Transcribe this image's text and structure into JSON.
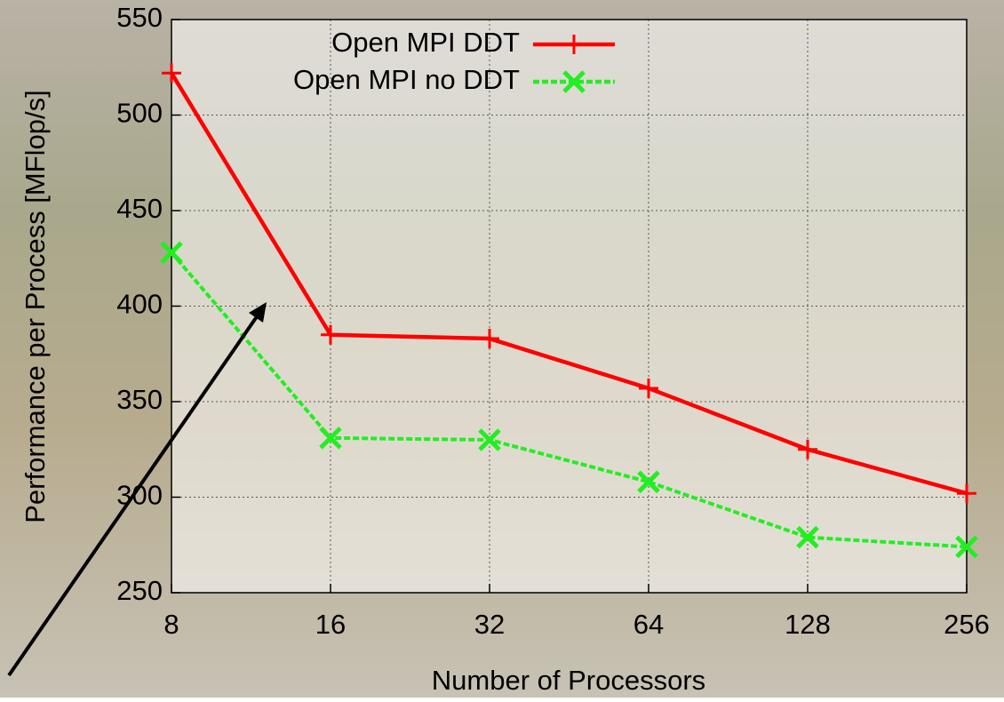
{
  "chart_data": {
    "type": "line",
    "x_label": "Number of Processors",
    "y_label": "Performance per Process [MFlop/s]",
    "x": [
      8,
      16,
      32,
      64,
      128,
      256
    ],
    "xlim": [
      8,
      256
    ],
    "xticks": [
      8,
      16,
      32,
      64,
      128,
      256
    ],
    "xlog": true,
    "ylim": [
      250,
      550
    ],
    "yticks": [
      250,
      300,
      350,
      400,
      450,
      500,
      550
    ],
    "grid": true,
    "legend": "top-right",
    "series": [
      {
        "name": "Open MPI DDT",
        "color": "#ff0000",
        "line_style": "solid",
        "marker": "plus",
        "values": [
          522,
          385,
          383,
          357,
          325,
          302
        ]
      },
      {
        "name": "Open MPI no DDT",
        "color": "#22ee22",
        "line_style": "dashed",
        "marker": "x",
        "values": [
          428,
          331,
          330,
          308,
          279,
          274
        ]
      }
    ]
  }
}
